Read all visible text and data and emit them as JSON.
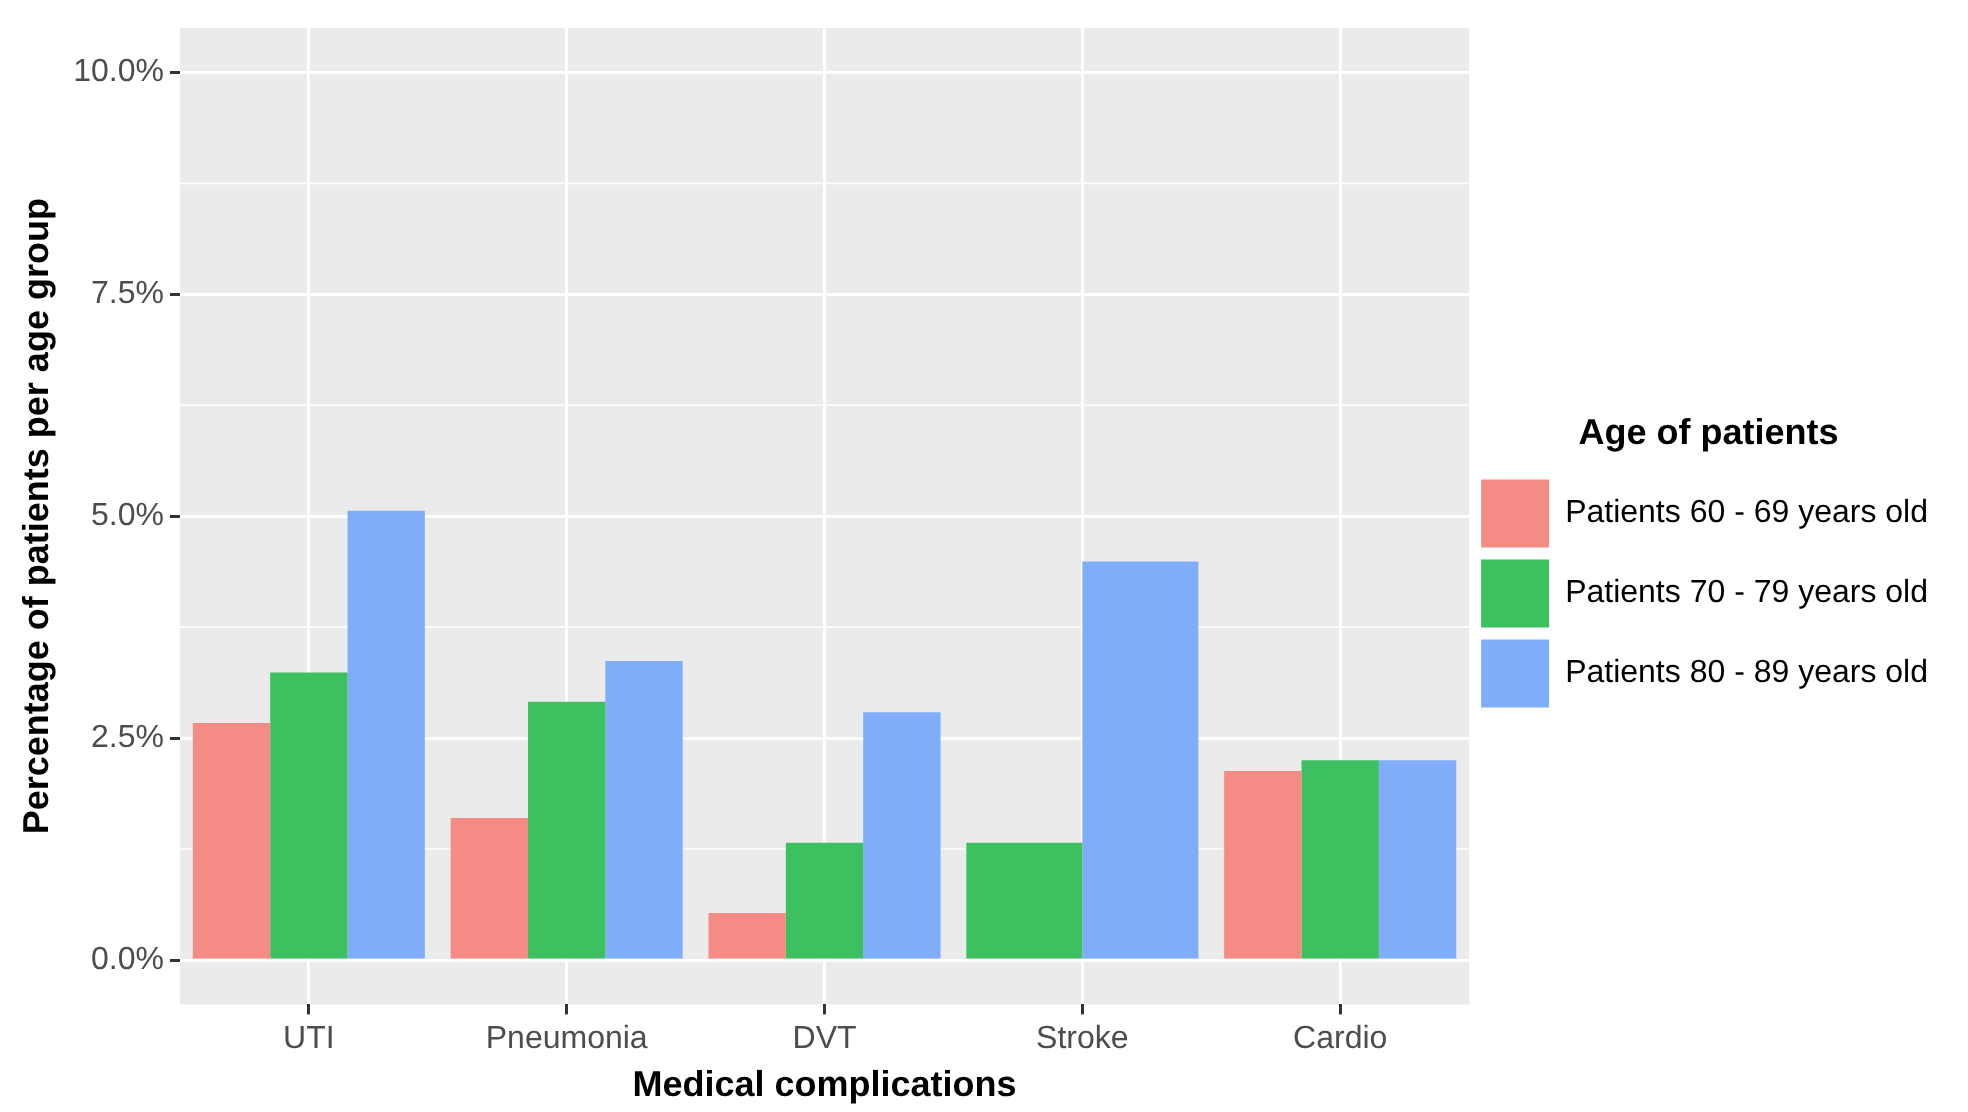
{
  "chart_data": {
    "type": "bar",
    "xlabel": "Medical complications",
    "ylabel": "Percentage of patients per age group",
    "legend_title": "Age of patients",
    "categories": [
      "UTI",
      "Pneumonia",
      "DVT",
      "Stroke",
      "Cardio"
    ],
    "series": [
      {
        "name": "Patients 60 - 69 years old",
        "color": "#f48b84",
        "values": [
          2.67,
          1.6,
          0.53,
          null,
          2.13
        ]
      },
      {
        "name": "Patients 70 - 79 years old",
        "color": "#3cc060",
        "values": [
          3.24,
          2.91,
          1.32,
          1.32,
          2.25
        ]
      },
      {
        "name": "Patients 80 - 89 years old",
        "color": "#80adfa",
        "values": [
          5.06,
          3.37,
          2.79,
          4.49,
          2.25
        ]
      }
    ],
    "ylim": [
      -0.5,
      10.5
    ],
    "yticks": [
      {
        "value": 0,
        "label": "0.0%"
      },
      {
        "value": 2.5,
        "label": "2.5%"
      },
      {
        "value": 5,
        "label": "5.0%"
      },
      {
        "value": 7.5,
        "label": "7.5%"
      },
      {
        "value": 10,
        "label": "10.0%"
      }
    ],
    "grid": true,
    "legend": "right"
  }
}
